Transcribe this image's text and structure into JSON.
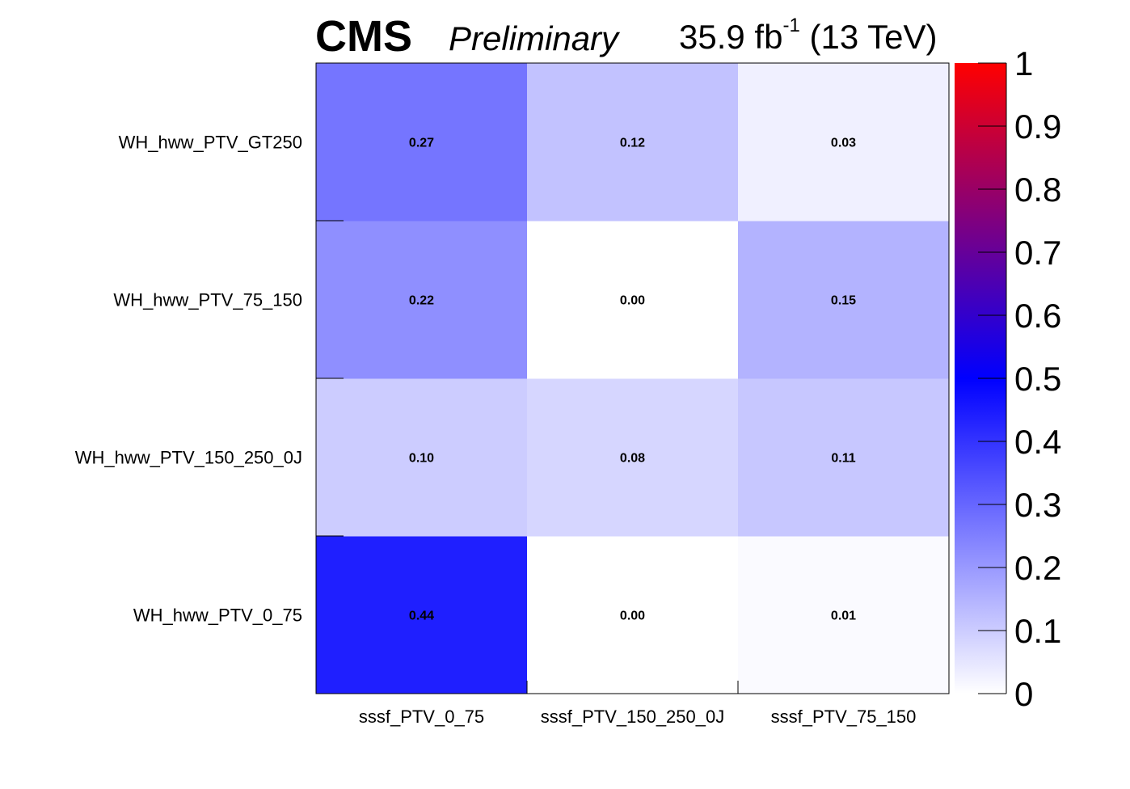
{
  "header": {
    "experiment": "CMS",
    "status": "Preliminary",
    "lumi_value": "35.9 fb",
    "lumi_exponent": "-1",
    "energy": "(13 TeV)"
  },
  "chart_data": {
    "type": "heatmap",
    "x_categories": [
      "sssf_PTV_0_75",
      "sssf_PTV_150_250_0J",
      "sssf_PTV_75_150"
    ],
    "y_categories": [
      "WH_hww_PTV_0_75",
      "WH_hww_PTV_150_250_0J",
      "WH_hww_PTV_75_150",
      "WH_hww_PTV_GT250"
    ],
    "values": [
      [
        0.44,
        0.0,
        0.01
      ],
      [
        0.1,
        0.08,
        0.11
      ],
      [
        0.22,
        0.0,
        0.15
      ],
      [
        0.27,
        0.12,
        0.03
      ]
    ],
    "value_labels": [
      [
        "0.44",
        "0.00",
        "0.01"
      ],
      [
        "0.10",
        "0.08",
        "0.11"
      ],
      [
        "0.22",
        "0.00",
        "0.15"
      ],
      [
        "0.27",
        "0.12",
        "0.03"
      ]
    ],
    "colorbar": {
      "range": [
        0,
        1
      ],
      "ticks": [
        "0",
        "0.1",
        "0.2",
        "0.3",
        "0.4",
        "0.5",
        "0.6",
        "0.7",
        "0.8",
        "0.9",
        "1"
      ],
      "colors": [
        "#ffffff",
        "#0000ff",
        "#ff0000"
      ]
    }
  }
}
